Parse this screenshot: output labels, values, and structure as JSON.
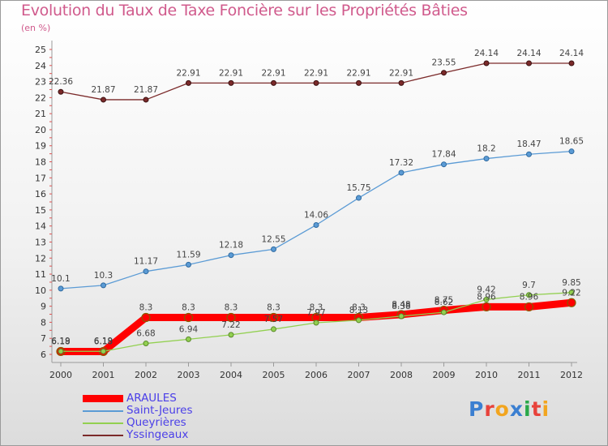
{
  "title": "Evolution du Taux de Taxe Foncière sur les Propriétés Bâties",
  "subtitle": "(en %)",
  "logo": {
    "letters": [
      "P",
      "r",
      "o",
      "x",
      "i",
      "t",
      "i"
    ],
    "colors": [
      "#3b7fd1",
      "#e8423b",
      "#f2a51f",
      "#3b7fd1",
      "#2aa84a",
      "#e8423b",
      "#f2a51f"
    ]
  },
  "chart_data": {
    "type": "line",
    "title": "Evolution du Taux de Taxe Foncière sur les Propriétés Bâties",
    "subtitle": "(en %)",
    "xlabel": "",
    "ylabel": "(en %)",
    "x": [
      "2000",
      "2001",
      "2002",
      "2003",
      "2004",
      "2005",
      "2006",
      "2007",
      "2008",
      "2009",
      "2010",
      "2011",
      "2012"
    ],
    "ylim": [
      6,
      25
    ],
    "yticks": [
      6,
      7,
      8,
      9,
      10,
      11,
      12,
      13,
      14,
      15,
      16,
      17,
      18,
      19,
      20,
      21,
      22,
      23,
      24,
      25
    ],
    "grid": false,
    "legend": "bottom-left",
    "series": [
      {
        "name": "ARAULES",
        "color": "#ff0000",
        "values": [
          6.18,
          6.18,
          8.3,
          8.3,
          8.3,
          8.3,
          8.3,
          8.3,
          8.48,
          8.75,
          8.96,
          8.96,
          9.22
        ],
        "labels": [
          "6.18",
          "6.18",
          "8.3",
          "8.3",
          "8.3",
          "8.3",
          "8.3",
          "8.3",
          "8.48",
          "8.75",
          "8.96",
          "8.96",
          "9.22"
        ]
      },
      {
        "name": "Saint-Jeures",
        "color": "#5b9bd5",
        "values": [
          10.1,
          10.3,
          11.17,
          11.59,
          12.18,
          12.55,
          14.06,
          15.75,
          17.32,
          17.84,
          18.2,
          18.47,
          18.65
        ],
        "labels": [
          "10.1",
          "10.3",
          "11.17",
          "11.59",
          "12.18",
          "12.55",
          "14.06",
          "15.75",
          "17.32",
          "17.84",
          "18.2",
          "18.47",
          "18.65"
        ]
      },
      {
        "name": "Queyrières",
        "color": "#92d050",
        "values": [
          6.19,
          6.19,
          6.68,
          6.94,
          7.22,
          7.57,
          7.97,
          8.13,
          8.38,
          8.62,
          9.42,
          9.7,
          9.85
        ],
        "labels": [
          "6.19",
          "6.19",
          "6.68",
          "6.94",
          "7.22",
          "7.57",
          "7.97",
          "8.13",
          "8.38",
          "8.62",
          "9.42",
          "9.7",
          "9.85"
        ]
      },
      {
        "name": "Yssingeaux",
        "color": "#7b2a2a",
        "values": [
          22.36,
          21.87,
          21.87,
          22.91,
          22.91,
          22.91,
          22.91,
          22.91,
          22.91,
          23.55,
          24.14,
          24.14,
          24.14
        ],
        "labels": [
          "22.36",
          "21.87",
          "21.87",
          "22.91",
          "22.91",
          "22.91",
          "22.91",
          "22.91",
          "22.91",
          "23.55",
          "24.14",
          "24.14",
          "24.14"
        ]
      }
    ]
  }
}
